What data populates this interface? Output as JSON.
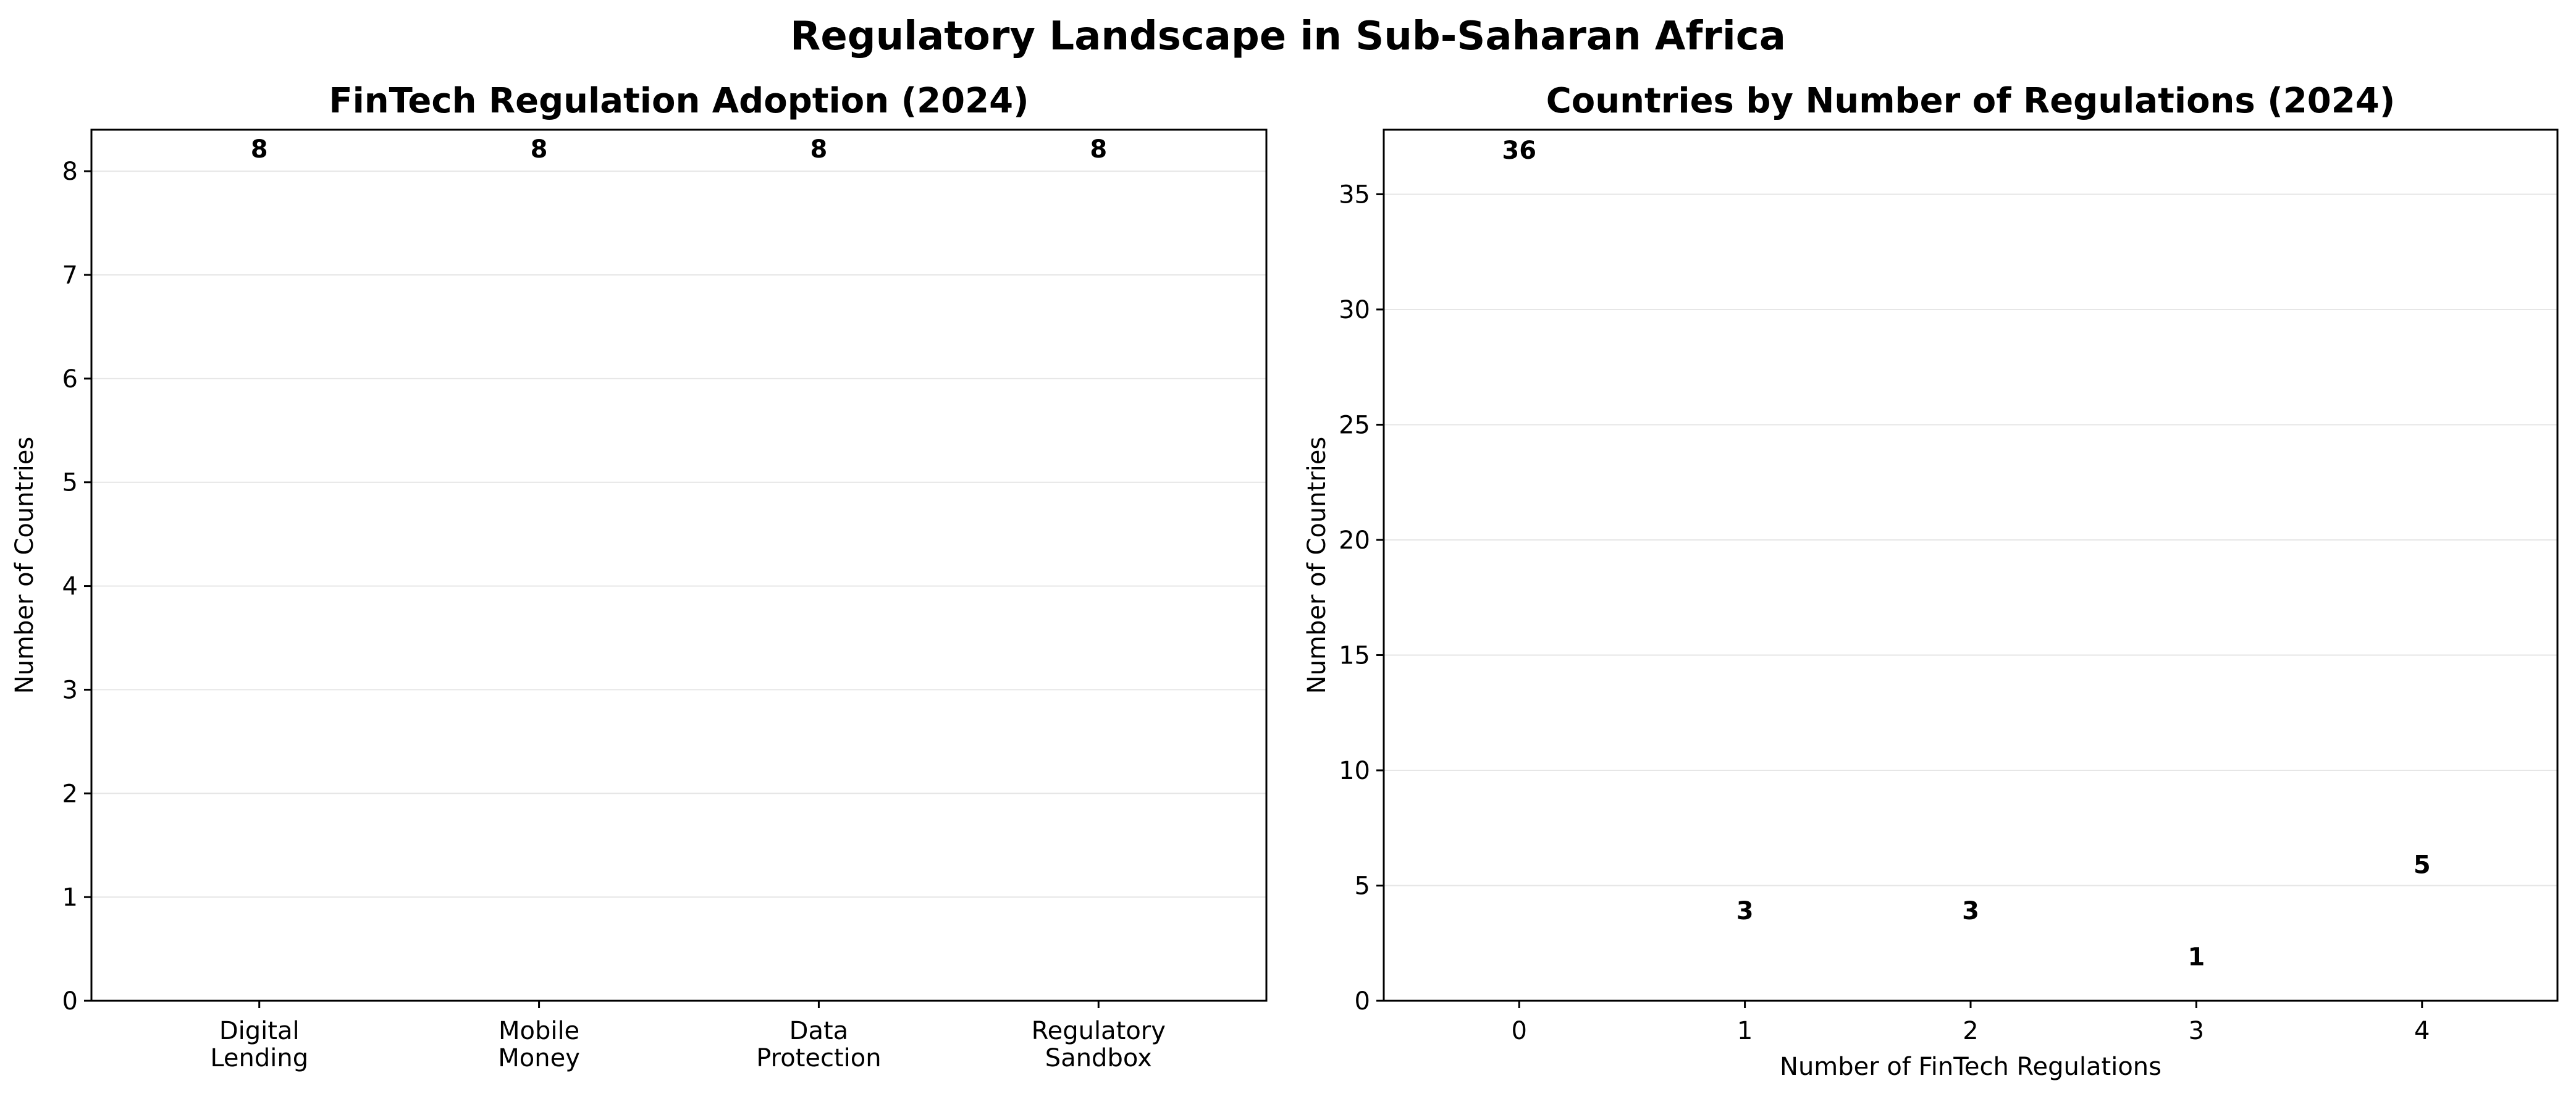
{
  "suptitle": "Regulatory Landscape in Sub-Saharan Africa",
  "chart_data": [
    {
      "type": "bar",
      "title": "FinTech Regulation Adoption (2024)",
      "xlabel": "",
      "ylabel": "Number of Countries",
      "categories": [
        "Digital\nLending",
        "Mobile\nMoney",
        "Data\nProtection",
        "Regulatory\nSandbox"
      ],
      "values": [
        8,
        8,
        8,
        8
      ],
      "colors": [
        "#ff6b6b",
        "#4ecdc4",
        "#45b7d1",
        "#96ceb4"
      ],
      "ylim": [
        0,
        8.4
      ],
      "yticks": [
        0,
        1,
        2,
        3,
        4,
        5,
        6,
        7,
        8
      ],
      "grid": "y",
      "bar_edge": false
    },
    {
      "type": "bar",
      "title": "Countries by Number of Regulations (2024)",
      "xlabel": "Number of FinTech Regulations",
      "ylabel": "Number of Countries",
      "categories": [
        "0",
        "1",
        "2",
        "3",
        "4"
      ],
      "values": [
        36,
        3,
        3,
        1,
        5
      ],
      "colors": [
        "#4682b4",
        "#4682b4",
        "#4682b4",
        "#4682b4",
        "#4682b4"
      ],
      "ylim": [
        0,
        37.8
      ],
      "yticks": [
        0,
        5,
        10,
        15,
        20,
        25,
        30,
        35
      ],
      "grid": "y",
      "bar_edge": true
    }
  ]
}
